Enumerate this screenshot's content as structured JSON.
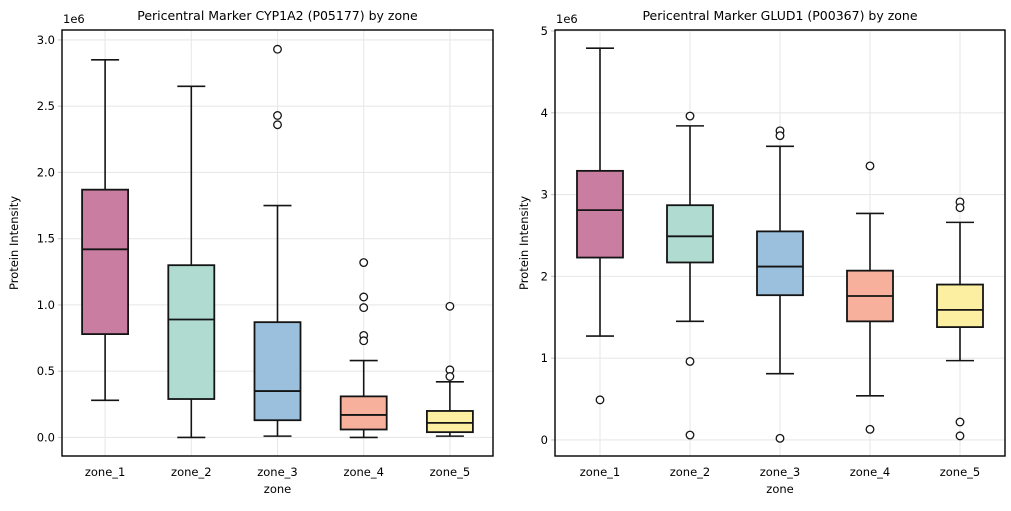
{
  "figure": {
    "background_color": "#ffffff",
    "grid_color": "#e8e8e8",
    "spine_color": "#000000",
    "box_edge_color": "#141414",
    "flier_fill_color": "#ffffff",
    "tick_mark_color": "#cccccc"
  },
  "chart_data": [
    {
      "type": "boxplot",
      "title": "Pericentral Marker CYP1A2 (P05177) by zone",
      "xlabel": "zone",
      "ylabel": "Protein Intensity",
      "y_offset_text": "1e6",
      "units_note": "all box values in units of 1e6",
      "grid": true,
      "legend": "none",
      "categories": [
        "zone_1",
        "zone_2",
        "zone_3",
        "zone_4",
        "zone_5"
      ],
      "ylim": [
        -0.14,
        3.075
      ],
      "yticks": [
        {
          "v": 0.0,
          "label": "0.0"
        },
        {
          "v": 0.5,
          "label": "0.5"
        },
        {
          "v": 1.0,
          "label": "1.0"
        },
        {
          "v": 1.5,
          "label": "1.5"
        },
        {
          "v": 2.0,
          "label": "2.0"
        },
        {
          "v": 2.5,
          "label": "2.5"
        },
        {
          "v": 3.0,
          "label": "3.0"
        }
      ],
      "boxes": [
        {
          "category": "zone_1",
          "color": "#C87DA1",
          "whislo": 0.28,
          "q1": 0.78,
          "med": 1.42,
          "q3": 1.87,
          "whishi": 2.85,
          "fliers": []
        },
        {
          "category": "zone_2",
          "color": "#AFDBD1",
          "whislo": 0.0,
          "q1": 0.29,
          "med": 0.89,
          "q3": 1.3,
          "whishi": 2.65,
          "fliers": []
        },
        {
          "category": "zone_3",
          "color": "#9AC0DD",
          "whislo": 0.01,
          "q1": 0.13,
          "med": 0.35,
          "q3": 0.87,
          "whishi": 1.75,
          "fliers": [
            2.93,
            2.43,
            2.36
          ]
        },
        {
          "category": "zone_4",
          "color": "#F6B09B",
          "whislo": 0.0,
          "q1": 0.06,
          "med": 0.17,
          "q3": 0.31,
          "whishi": 0.58,
          "fliers": [
            1.32,
            1.06,
            0.98,
            0.77,
            0.73
          ]
        },
        {
          "category": "zone_5",
          "color": "#FCEFA1",
          "whislo": 0.01,
          "q1": 0.04,
          "med": 0.11,
          "q3": 0.2,
          "whishi": 0.42,
          "fliers": [
            0.99,
            0.51,
            0.46
          ]
        }
      ]
    },
    {
      "type": "boxplot",
      "title": "Pericentral Marker GLUD1 (P00367) by zone",
      "xlabel": "zone",
      "ylabel": "Protein Intensity",
      "y_offset_text": "1e6",
      "units_note": "all box values in units of 1e6",
      "grid": true,
      "legend": "none",
      "categories": [
        "zone_1",
        "zone_2",
        "zone_3",
        "zone_4",
        "zone_5"
      ],
      "ylim": [
        -0.196,
        5.012
      ],
      "yticks": [
        {
          "v": 0,
          "label": "0"
        },
        {
          "v": 1,
          "label": "1"
        },
        {
          "v": 2,
          "label": "2"
        },
        {
          "v": 3,
          "label": "3"
        },
        {
          "v": 4,
          "label": "4"
        },
        {
          "v": 5,
          "label": "5"
        }
      ],
      "boxes": [
        {
          "category": "zone_1",
          "color": "#C87DA1",
          "whislo": 1.27,
          "q1": 2.23,
          "med": 2.81,
          "q3": 3.29,
          "whishi": 4.79,
          "fliers": [
            0.49
          ]
        },
        {
          "category": "zone_2",
          "color": "#AFDBD1",
          "whislo": 1.45,
          "q1": 2.17,
          "med": 2.49,
          "q3": 2.87,
          "whishi": 3.84,
          "fliers": [
            3.96,
            0.96,
            0.06
          ]
        },
        {
          "category": "zone_3",
          "color": "#9AC0DD",
          "whislo": 0.81,
          "q1": 1.77,
          "med": 2.12,
          "q3": 2.55,
          "whishi": 3.59,
          "fliers": [
            3.78,
            3.72,
            0.02
          ]
        },
        {
          "category": "zone_4",
          "color": "#F6B09B",
          "whislo": 0.54,
          "q1": 1.45,
          "med": 1.76,
          "q3": 2.07,
          "whishi": 2.77,
          "fliers": [
            3.35,
            0.13
          ]
        },
        {
          "category": "zone_5",
          "color": "#FCEFA1",
          "whislo": 0.97,
          "q1": 1.38,
          "med": 1.59,
          "q3": 1.9,
          "whishi": 2.66,
          "fliers": [
            2.91,
            2.84,
            0.22,
            0.05
          ]
        }
      ]
    }
  ]
}
